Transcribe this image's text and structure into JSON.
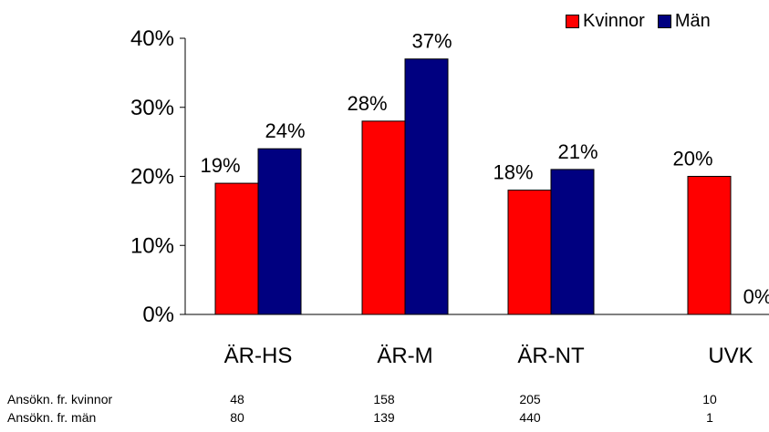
{
  "chart_data": {
    "type": "bar",
    "categories": [
      "ÄR-HS",
      "ÄR-M",
      "ÄR-NT",
      "UVK"
    ],
    "series": [
      {
        "name": "Kvinnor",
        "values": [
          19,
          28,
          18,
          20
        ],
        "labels": [
          "19%",
          "28%",
          "18%",
          "20%"
        ],
        "color": "#ff0000"
      },
      {
        "name": "Män",
        "values": [
          24,
          37,
          21,
          0
        ],
        "labels": [
          "24%",
          "37%",
          "21%",
          "0%"
        ],
        "color": "#000080"
      }
    ],
    "y_ticks": [
      "0%",
      "10%",
      "20%",
      "30%",
      "40%"
    ],
    "ylim": [
      0,
      40
    ],
    "y_unit": "%",
    "grid": false,
    "legend_position": "top-right"
  },
  "table": {
    "rows": [
      {
        "label": "Ansökn. fr. kvinnor",
        "values": [
          "48",
          "158",
          "205",
          "10"
        ]
      },
      {
        "label": "Ansökn. fr. män",
        "values": [
          "80",
          "139",
          "440",
          "1"
        ]
      }
    ]
  }
}
